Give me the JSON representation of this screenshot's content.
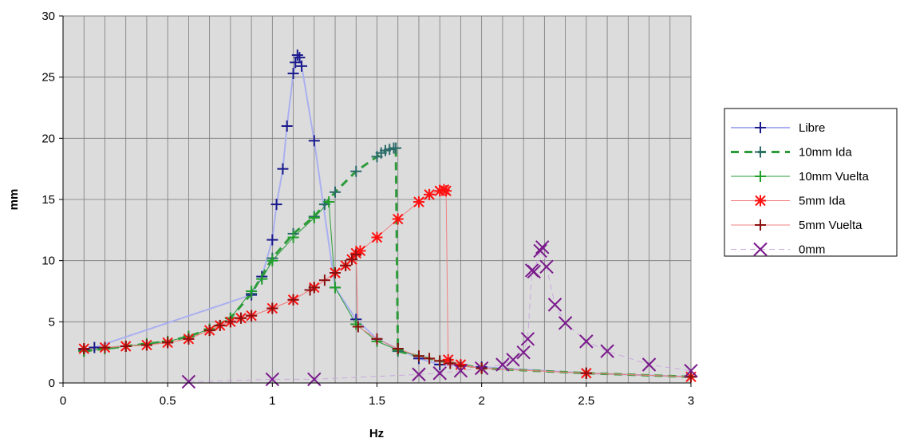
{
  "chart_data": {
    "type": "line",
    "title": "",
    "xlabel": "Hz",
    "ylabel": "mm",
    "xlim": [
      0,
      3
    ],
    "ylim": [
      0,
      30
    ],
    "x_ticks": [
      "0",
      "0.5",
      "1",
      "1.5",
      "2",
      "2.5",
      "3"
    ],
    "y_ticks": [
      "0",
      "5",
      "10",
      "15",
      "20",
      "25",
      "30"
    ],
    "grid": true,
    "legend_position": "right",
    "plot_background": "#dcdcdc",
    "series": [
      {
        "name": "Libre",
        "color": "#aab0f0",
        "marker_color": "#1a1a8c",
        "marker": "plus",
        "dash": "solid",
        "points": [
          [
            0.1,
            2.7
          ],
          [
            0.15,
            2.9
          ],
          [
            0.9,
            7.2
          ],
          [
            0.95,
            8.7
          ],
          [
            1.0,
            11.7
          ],
          [
            1.02,
            14.6
          ],
          [
            1.05,
            17.5
          ],
          [
            1.07,
            21.0
          ],
          [
            1.1,
            25.3
          ],
          [
            1.11,
            26.2
          ],
          [
            1.12,
            26.8
          ],
          [
            1.13,
            26.6
          ],
          [
            1.14,
            25.9
          ],
          [
            1.2,
            19.8
          ],
          [
            1.3,
            7.8
          ],
          [
            1.4,
            5.2
          ],
          [
            1.5,
            3.6
          ],
          [
            1.6,
            2.8
          ],
          [
            1.7,
            2.0
          ],
          [
            1.8,
            1.5
          ],
          [
            2.0,
            1.3
          ],
          [
            2.5,
            0.8
          ],
          [
            3.0,
            0.5
          ]
        ]
      },
      {
        "name": "10mm Ida",
        "color": "#2e9b3a",
        "marker_color": "#2b6a6a",
        "marker": "plus",
        "dash": "dash",
        "points": [
          [
            0.1,
            2.6
          ],
          [
            0.2,
            2.8
          ],
          [
            0.3,
            3.0
          ],
          [
            0.4,
            3.2
          ],
          [
            0.5,
            3.4
          ],
          [
            0.6,
            3.8
          ],
          [
            0.7,
            4.4
          ],
          [
            0.8,
            5.3
          ],
          [
            0.9,
            7.3
          ],
          [
            1.0,
            10.2
          ],
          [
            1.1,
            12.2
          ],
          [
            1.2,
            13.6
          ],
          [
            1.25,
            14.6
          ],
          [
            1.3,
            15.6
          ],
          [
            1.4,
            17.3
          ],
          [
            1.5,
            18.5
          ],
          [
            1.52,
            18.8
          ],
          [
            1.54,
            19.0
          ],
          [
            1.56,
            19.1
          ],
          [
            1.58,
            19.2
          ],
          [
            1.59,
            19.2
          ],
          [
            1.6,
            2.6
          ],
          [
            1.7,
            2.2
          ],
          [
            1.8,
            1.8
          ],
          [
            2.0,
            1.2
          ],
          [
            2.5,
            0.8
          ],
          [
            3.0,
            0.5
          ]
        ]
      },
      {
        "name": "10mm Vuelta",
        "color": "#2e9b3a",
        "marker_color": "#1fa02a",
        "marker": "plus",
        "dash": "solid-thin",
        "points": [
          [
            0.1,
            2.6
          ],
          [
            0.2,
            2.8
          ],
          [
            0.3,
            3.0
          ],
          [
            0.4,
            3.2
          ],
          [
            0.5,
            3.4
          ],
          [
            0.6,
            3.8
          ],
          [
            0.7,
            4.4
          ],
          [
            0.8,
            5.3
          ],
          [
            0.9,
            7.5
          ],
          [
            0.95,
            8.5
          ],
          [
            1.0,
            10.0
          ],
          [
            1.1,
            11.9
          ],
          [
            1.2,
            13.5
          ],
          [
            1.27,
            14.8
          ],
          [
            1.3,
            7.8
          ],
          [
            1.4,
            4.8
          ],
          [
            1.5,
            3.4
          ],
          [
            1.6,
            2.7
          ],
          [
            1.7,
            2.2
          ],
          [
            1.8,
            1.8
          ],
          [
            2.0,
            1.2
          ],
          [
            2.5,
            0.8
          ],
          [
            3.0,
            0.5
          ]
        ]
      },
      {
        "name": "5mm Ida",
        "color": "#f08080",
        "marker_color": "#ff1010",
        "marker": "star",
        "dash": "solid-thin",
        "points": [
          [
            0.1,
            2.8
          ],
          [
            0.2,
            2.9
          ],
          [
            0.3,
            3.0
          ],
          [
            0.4,
            3.1
          ],
          [
            0.5,
            3.3
          ],
          [
            0.6,
            3.6
          ],
          [
            0.7,
            4.3
          ],
          [
            0.75,
            4.7
          ],
          [
            0.8,
            5.0
          ],
          [
            0.85,
            5.3
          ],
          [
            0.9,
            5.5
          ],
          [
            1.0,
            6.1
          ],
          [
            1.1,
            6.8
          ],
          [
            1.2,
            7.8
          ],
          [
            1.3,
            9.0
          ],
          [
            1.35,
            9.6
          ],
          [
            1.38,
            10.1
          ],
          [
            1.4,
            10.6
          ],
          [
            1.42,
            10.8
          ],
          [
            1.5,
            11.9
          ],
          [
            1.6,
            13.4
          ],
          [
            1.7,
            14.8
          ],
          [
            1.75,
            15.4
          ],
          [
            1.8,
            15.7
          ],
          [
            1.82,
            15.8
          ],
          [
            1.83,
            15.7
          ],
          [
            1.84,
            1.9
          ],
          [
            1.9,
            1.5
          ],
          [
            2.0,
            1.2
          ],
          [
            2.5,
            0.8
          ],
          [
            3.0,
            0.5
          ]
        ]
      },
      {
        "name": "5mm Vuelta",
        "color": "#f08080",
        "marker_color": "#8b1010",
        "marker": "plus",
        "dash": "solid-thin",
        "points": [
          [
            0.1,
            2.8
          ],
          [
            0.2,
            2.9
          ],
          [
            0.3,
            3.0
          ],
          [
            0.4,
            3.1
          ],
          [
            0.5,
            3.3
          ],
          [
            0.6,
            3.6
          ],
          [
            0.7,
            4.3
          ],
          [
            0.75,
            4.7
          ],
          [
            0.8,
            5.0
          ],
          [
            0.85,
            5.3
          ],
          [
            0.9,
            5.5
          ],
          [
            1.0,
            6.1
          ],
          [
            1.1,
            6.8
          ],
          [
            1.18,
            7.6
          ],
          [
            1.2,
            7.8
          ],
          [
            1.25,
            8.4
          ],
          [
            1.3,
            9.0
          ],
          [
            1.35,
            9.6
          ],
          [
            1.38,
            10.1
          ],
          [
            1.4,
            10.5
          ],
          [
            1.41,
            4.6
          ],
          [
            1.5,
            3.6
          ],
          [
            1.6,
            2.8
          ],
          [
            1.7,
            2.2
          ],
          [
            1.75,
            2.0
          ],
          [
            1.8,
            1.8
          ],
          [
            1.85,
            1.6
          ],
          [
            1.9,
            1.4
          ],
          [
            2.0,
            1.2
          ],
          [
            2.5,
            0.8
          ],
          [
            3.0,
            0.5
          ]
        ]
      },
      {
        "name": "0mm",
        "color": "#c9a8e0",
        "marker_color": "#7a1a8c",
        "marker": "x",
        "dash": "dash",
        "points": [
          [
            0.6,
            0.1
          ],
          [
            1.0,
            0.3
          ],
          [
            1.2,
            0.3
          ],
          [
            1.7,
            0.7
          ],
          [
            1.8,
            0.8
          ],
          [
            1.9,
            1.0
          ],
          [
            2.0,
            1.2
          ],
          [
            2.1,
            1.5
          ],
          [
            2.15,
            1.9
          ],
          [
            2.2,
            2.5
          ],
          [
            2.22,
            3.6
          ],
          [
            2.24,
            9.2
          ],
          [
            2.25,
            9.1
          ],
          [
            2.28,
            10.8
          ],
          [
            2.29,
            11.1
          ],
          [
            2.31,
            9.5
          ],
          [
            2.35,
            6.4
          ],
          [
            2.4,
            4.9
          ],
          [
            2.5,
            3.4
          ],
          [
            2.6,
            2.6
          ],
          [
            2.8,
            1.5
          ],
          [
            3.0,
            1.0
          ]
        ]
      }
    ]
  }
}
